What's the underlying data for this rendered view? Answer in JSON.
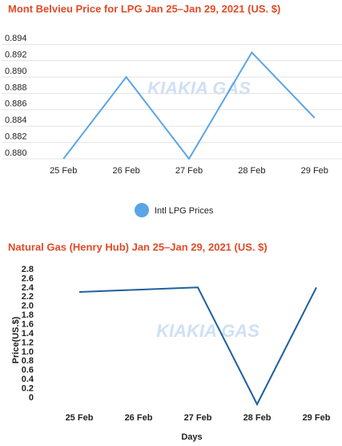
{
  "chart_data": [
    {
      "type": "line",
      "title": "Mont Belvieu Price for LPG  Jan 25–Jan 29, 2021 (US. $)",
      "categories": [
        "25 Feb",
        "26 Feb",
        "27 Feb",
        "28 Feb",
        "29 Feb"
      ],
      "series": [
        {
          "name": "Intl LPG Prices",
          "color": "#5aa5e6",
          "values": [
            0.88,
            0.89,
            0.88,
            0.893,
            0.885
          ]
        }
      ],
      "ylim": [
        0.88,
        0.895
      ],
      "yticks": [
        {
          "value": 0.88,
          "label": "0.880"
        },
        0.882,
        0.884,
        0.886,
        0.888,
        {
          "value": 0.89,
          "label": "0.890"
        },
        0.892,
        0.894
      ],
      "grid": true,
      "legend": "bottom",
      "watermark": "KIAKIA GAS"
    },
    {
      "type": "line",
      "title": "Natural Gas (Henry Hub) Jan 25–Jan 29, 2021 (US. $)",
      "categories": [
        "25 Feb",
        "26 Feb",
        "27 Feb",
        "28 Feb",
        "29 Feb"
      ],
      "series": [
        {
          "color": "#1f5fa0",
          "values": [
            2.45,
            2.5,
            2.55,
            0,
            2.55
          ]
        }
      ],
      "ylim": [
        0,
        2.8
      ],
      "yticks": [
        0,
        0.2,
        0.4,
        0.6,
        0.8,
        {
          "value": 1,
          "label": "1.0"
        },
        1.2,
        1.4,
        1.6,
        1.8,
        {
          "value": 2,
          "label": "2.0"
        },
        2.2,
        2.4,
        2.6,
        2.8
      ],
      "grid": false,
      "y_label": "Price(US.$)",
      "x_label": "Days",
      "watermark": "KIAKIA GAS"
    }
  ]
}
